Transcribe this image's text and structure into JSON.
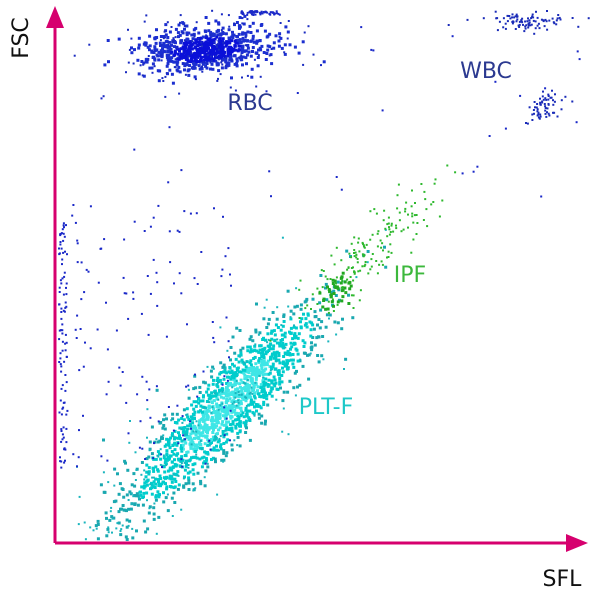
{
  "axes": {
    "x_label": "SFL",
    "y_label": "FSC"
  },
  "populations": [
    {
      "label": "RBC"
    },
    {
      "label": "WBC"
    },
    {
      "label": "IPF"
    },
    {
      "label": "PLT-F"
    }
  ]
}
